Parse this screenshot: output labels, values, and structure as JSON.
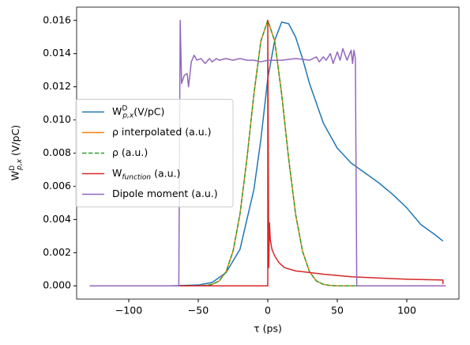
{
  "chart_data": {
    "type": "line",
    "x_label": "τ (ps)",
    "y_label": "WDp,x (V/pC)",
    "xlim": [
      -137.5,
      137.5
    ],
    "ylim": [
      -0.0008,
      0.0168
    ],
    "xticks": [
      {
        "value": -100,
        "label": "−100"
      },
      {
        "value": -50,
        "label": "−50"
      },
      0,
      50,
      100
    ],
    "yticks": [
      {
        "value": 0,
        "label": "0.000"
      },
      {
        "value": 0.002,
        "label": "0.002"
      },
      {
        "value": 0.004,
        "label": "0.004"
      },
      {
        "value": 0.006,
        "label": "0.006"
      },
      {
        "value": 0.008,
        "label": "0.008"
      },
      {
        "value": 0.01,
        "label": "0.010"
      },
      {
        "value": 0.012,
        "label": "0.012"
      },
      {
        "value": 0.014,
        "label": "0.014"
      },
      {
        "value": 0.016,
        "label": "0.016"
      }
    ],
    "legend": "center left",
    "series": [
      {
        "name": "WDp,x(V/pC)",
        "color": "#1f77b4",
        "dash": "solid",
        "x": [
          -128,
          -100,
          -70,
          -50,
          -40,
          -30,
          -20,
          -10,
          -5,
          0,
          5,
          10,
          15,
          20,
          25,
          30,
          40,
          50,
          60,
          70,
          80,
          90,
          100,
          110,
          120,
          126
        ],
        "values": [
          0,
          0,
          0,
          5e-05,
          0.0002,
          0.0008,
          0.0022,
          0.0058,
          0.0088,
          0.0125,
          0.0148,
          0.0159,
          0.0158,
          0.015,
          0.0137,
          0.0122,
          0.0098,
          0.0083,
          0.0074,
          0.0068,
          0.0062,
          0.0055,
          0.0047,
          0.0037,
          0.0031,
          0.0027
        ]
      },
      {
        "name": "ρ interpolated (a.u.)",
        "color": "#ff7f0e",
        "dash": "solid",
        "x": [
          -128,
          -60,
          -50,
          -45,
          -40,
          -35,
          -30,
          -25,
          -20,
          -15,
          -10,
          -5,
          0,
          5,
          10,
          15,
          20,
          25,
          30,
          35,
          40,
          45,
          50,
          60,
          128
        ],
        "values": [
          0,
          0,
          0,
          2e-05,
          9e-05,
          0.00029,
          0.00085,
          0.00208,
          0.00432,
          0.00767,
          0.01154,
          0.01475,
          0.016,
          0.01475,
          0.01154,
          0.00767,
          0.00432,
          0.00208,
          0.00085,
          0.00029,
          9e-05,
          2e-05,
          0,
          0,
          0
        ]
      },
      {
        "name": "ρ (a.u.)",
        "color": "#2ca02c",
        "dash": "dashed",
        "x": [
          -128,
          -60,
          -50,
          -45,
          -40,
          -35,
          -30,
          -25,
          -20,
          -15,
          -10,
          -5,
          0,
          5,
          10,
          15,
          20,
          25,
          30,
          35,
          40,
          45,
          50,
          60,
          128
        ],
        "values": [
          0,
          0,
          0,
          2e-05,
          9e-05,
          0.00029,
          0.00085,
          0.00208,
          0.00432,
          0.00767,
          0.01154,
          0.01475,
          0.016,
          0.01475,
          0.01154,
          0.00767,
          0.00432,
          0.00208,
          0.00085,
          0.00029,
          9e-05,
          2e-05,
          0,
          0,
          0
        ]
      },
      {
        "name": "Wfunction (a.u.)",
        "color": "#d62728",
        "dash": "solid",
        "x": [
          -128,
          0,
          0,
          0.7,
          1.2,
          1.8,
          3,
          5,
          8,
          12,
          20,
          40,
          60,
          80,
          100,
          126,
          126
        ],
        "values": [
          0,
          0,
          0.016,
          0.0011,
          0.0038,
          0.0028,
          0.0022,
          0.0018,
          0.0014,
          0.0011,
          0.0009,
          0.0007,
          0.00055,
          0.00047,
          0.0004,
          0.00035,
          0.0001
        ]
      },
      {
        "name": "Dipole moment (a.u.)",
        "color": "#9467bd",
        "dash": "solid",
        "x": [
          -128,
          -64,
          -63,
          -62,
          -60,
          -58,
          -57,
          -55,
          -53,
          -51,
          -48,
          -45,
          -42,
          -40,
          -37,
          -35,
          -30,
          -25,
          -20,
          -15,
          -10,
          -5,
          0,
          10,
          20,
          30,
          35,
          37,
          40,
          42,
          45,
          47,
          50,
          52,
          54,
          57,
          60,
          61,
          62,
          63,
          64,
          128
        ],
        "values": [
          0,
          0,
          0.016,
          0.0122,
          0.0127,
          0.0128,
          0.012,
          0.0135,
          0.0139,
          0.0136,
          0.0137,
          0.0134,
          0.0137,
          0.0135,
          0.0137,
          0.0136,
          0.0137,
          0.0136,
          0.0137,
          0.0136,
          0.0136,
          0.0135,
          0.0136,
          0.0136,
          0.0137,
          0.0136,
          0.0138,
          0.0135,
          0.0138,
          0.0136,
          0.014,
          0.0134,
          0.0141,
          0.0136,
          0.0143,
          0.0136,
          0.0142,
          0.0134,
          0.0142,
          0.0137,
          0,
          0
        ]
      }
    ]
  }
}
